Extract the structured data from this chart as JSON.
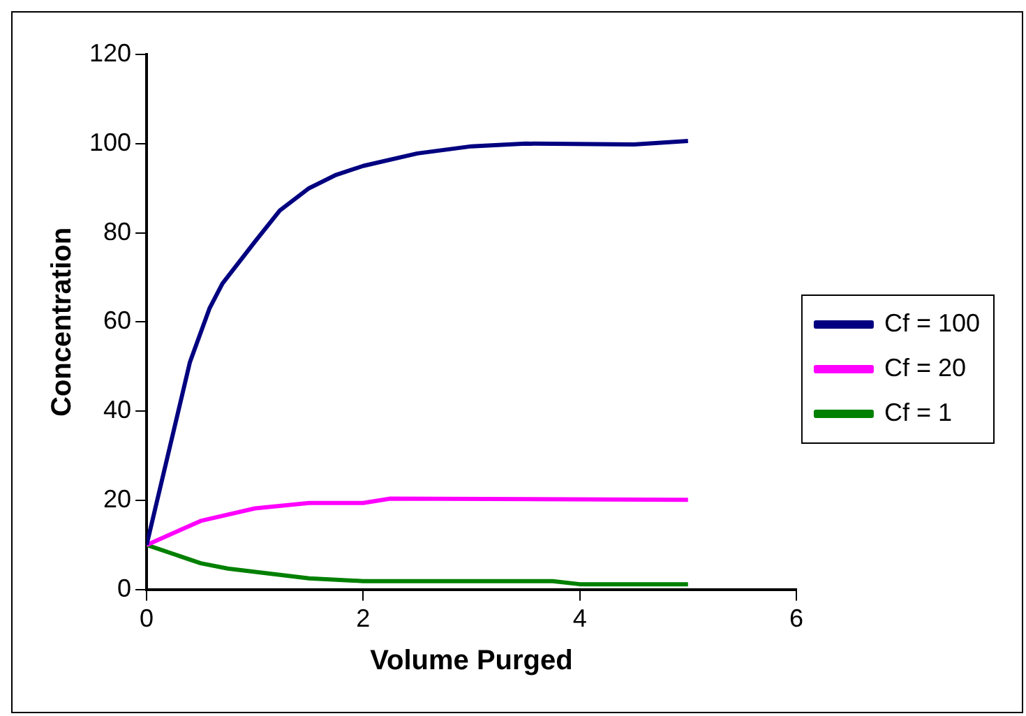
{
  "chart_data": {
    "type": "line",
    "xlabel": "Volume Purged",
    "ylabel": "Concentration",
    "xlim": [
      0,
      6
    ],
    "xticks": [
      0,
      2,
      4,
      6
    ],
    "ylim": [
      0,
      120
    ],
    "yticks": [
      0,
      20,
      40,
      60,
      80,
      100,
      120
    ],
    "grid": false,
    "legend": "right",
    "marker": "none",
    "line_style": "solid",
    "series": [
      {
        "name": "Cf = 100",
        "color": "#000080",
        "x": [
          0,
          0.4,
          0.58,
          0.7,
          1.0,
          1.23,
          1.5,
          1.75,
          2.0,
          2.5,
          3.0,
          3.5,
          4.5,
          5.0
        ],
        "values": [
          10,
          51,
          63,
          68.6,
          78,
          85,
          90,
          93,
          95,
          97.8,
          99.4,
          100,
          99.8,
          100.6
        ]
      },
      {
        "name": "Cf = 20",
        "color": "#ff00ff",
        "x": [
          0,
          0.5,
          1.0,
          1.5,
          2.0,
          2.25,
          5.0
        ],
        "values": [
          10,
          15.4,
          18.2,
          19.4,
          19.4,
          20.4,
          20.1
        ]
      },
      {
        "name": "Cf = 1",
        "color": "#008000",
        "x": [
          0,
          0.5,
          0.75,
          1.5,
          2.0,
          3.75,
          4.0,
          5.0
        ],
        "values": [
          10,
          5.9,
          4.7,
          2.5,
          1.9,
          1.9,
          1.2,
          1.2
        ]
      }
    ]
  }
}
